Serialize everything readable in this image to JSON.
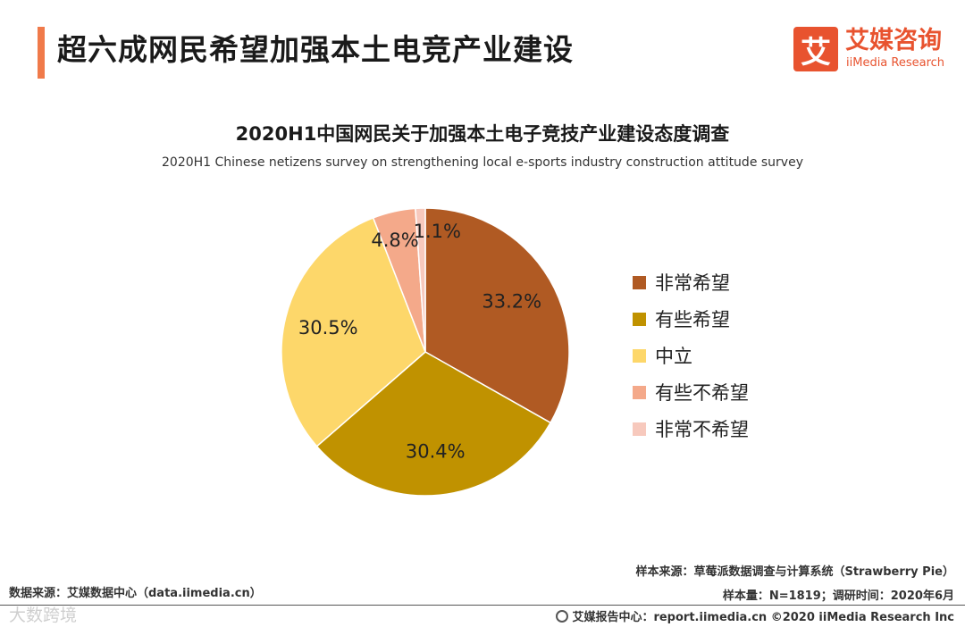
{
  "header": {
    "title": "超六成网民希望加强本土电竞产业建设",
    "accent_color": "#f07a4a"
  },
  "logo": {
    "mark": "艾",
    "name_cn": "艾媒咨询",
    "name_en": "iiMedia Research",
    "color": "#e8532f"
  },
  "chart_data": {
    "type": "pie",
    "title": "2020H1中国网民关于加强本土电子竞技产业建设态度调查",
    "subtitle": "2020H1 Chinese netizens survey on strengthening local e-sports industry construction attitude survey",
    "categories": [
      "非常希望",
      "有些希望",
      "中立",
      "有些不希望",
      "非常不希望"
    ],
    "values": [
      33.2,
      30.4,
      30.5,
      4.8,
      1.1
    ],
    "value_labels": [
      "33.2%",
      "30.4%",
      "30.5%",
      "4.8%",
      "1.1%"
    ],
    "colors": [
      "#b05a23",
      "#c09200",
      "#fdd76a",
      "#f4a98a",
      "#f7c9bd"
    ],
    "start": "12 o'clock",
    "direction": "clockwise",
    "legend_position": "right"
  },
  "footer": {
    "sample_source": "样本来源：草莓派数据调查与计算系统（Strawberry Pie）",
    "sample_info": "样本量：N=1819；调研时间：2020年6月",
    "data_source": "数据来源：艾媒数据中心（data.iimedia.cn）",
    "copyright": "艾媒报告中心：report.iimedia.cn  ©2020  iiMedia Research  Inc",
    "watermark": "大数跨境"
  }
}
